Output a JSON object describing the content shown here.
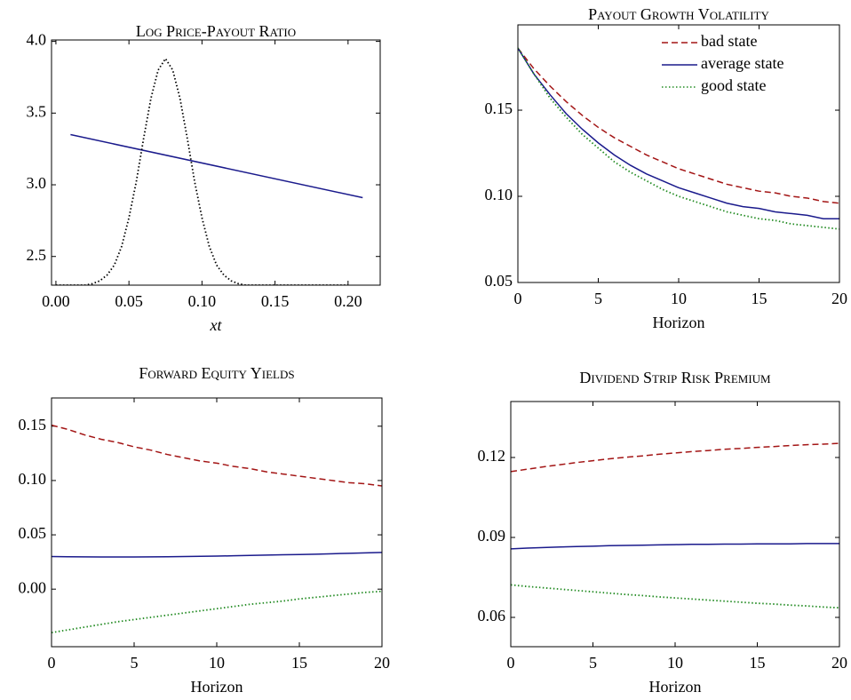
{
  "chart_data": [
    {
      "type": "line",
      "title": "Log Price-Payout Ratio",
      "xlabel": "xt",
      "xlim": [
        -0.003,
        0.222
      ],
      "xticks": [
        {
          "value": 0,
          "label": "0.00"
        },
        0.05,
        {
          "value": 0.1,
          "label": "0.10"
        },
        0.15,
        {
          "value": 0.2,
          "label": "0.20"
        }
      ],
      "ylim": [
        2.3,
        4.01
      ],
      "yticks": [
        2.5,
        {
          "value": 3,
          "label": "3.0"
        },
        3.5,
        {
          "value": 4,
          "label": "4.0"
        }
      ],
      "series": [
        {
          "color": "#1a1a8c",
          "dash": "solid",
          "x": [
            0.01,
            0.21
          ],
          "values": [
            3.35,
            2.91
          ]
        },
        {
          "color": "#000000",
          "dash": "dotted",
          "x": [
            0,
            0.005,
            0.01,
            0.015,
            0.02,
            0.025,
            0.03,
            0.035,
            0.04,
            0.045,
            0.05,
            0.055,
            0.06,
            0.065,
            0.07,
            0.075,
            0.08,
            0.085,
            0.09,
            0.095,
            0.1,
            0.105,
            0.11,
            0.115,
            0.12,
            0.125,
            0.13,
            0.14,
            0.15,
            0.16,
            0.17,
            0.18,
            0.19,
            0.2
          ],
          "values": [
            2.3,
            2.3,
            2.3,
            2.3,
            2.3,
            2.31,
            2.33,
            2.37,
            2.44,
            2.57,
            2.77,
            3.02,
            3.32,
            3.6,
            3.8,
            3.88,
            3.8,
            3.6,
            3.32,
            3.02,
            2.77,
            2.57,
            2.44,
            2.37,
            2.33,
            2.31,
            2.3,
            2.3,
            2.3,
            2.3,
            2.3,
            2.3,
            2.3,
            2.3
          ]
        }
      ]
    },
    {
      "type": "line",
      "title": "Payout Growth Volatility",
      "xlabel": "Horizon",
      "legend": "north east",
      "x": [
        0,
        1,
        2,
        3,
        4,
        5,
        6,
        7,
        8,
        9,
        10,
        11,
        12,
        13,
        14,
        15,
        16,
        17,
        18,
        19,
        20
      ],
      "xlim": [
        0,
        20
      ],
      "xticks": [
        0,
        5,
        10,
        15,
        20
      ],
      "ylim": [
        0.05,
        0.1995
      ],
      "yticks": [
        0.05,
        {
          "value": 0.1,
          "label": "0.10"
        },
        0.15
      ],
      "series": [
        {
          "name": "bad state",
          "color": "#a31515",
          "dash": "dashed",
          "values": [
            0.186,
            0.174,
            0.164,
            0.155,
            0.147,
            0.14,
            0.134,
            0.129,
            0.124,
            0.12,
            0.116,
            0.113,
            0.11,
            0.107,
            0.105,
            0.103,
            0.102,
            0.1,
            0.099,
            0.097,
            0.096
          ]
        },
        {
          "name": "average state",
          "color": "#1a1a8c",
          "dash": "solid",
          "values": [
            0.186,
            0.171,
            0.159,
            0.148,
            0.139,
            0.131,
            0.124,
            0.118,
            0.113,
            0.109,
            0.105,
            0.102,
            0.099,
            0.096,
            0.094,
            0.093,
            0.091,
            0.09,
            0.089,
            0.087,
            0.087
          ]
        },
        {
          "name": "good state",
          "color": "#228b22",
          "dash": "dotted",
          "values": [
            0.186,
            0.171,
            0.157,
            0.146,
            0.136,
            0.128,
            0.12,
            0.114,
            0.109,
            0.104,
            0.1,
            0.097,
            0.094,
            0.091,
            0.089,
            0.087,
            0.086,
            0.084,
            0.083,
            0.082,
            0.081
          ]
        }
      ]
    },
    {
      "type": "line",
      "title": "Forward Equity Yields",
      "xlabel": "Horizon",
      "x": [
        0,
        1,
        2,
        3,
        4,
        5,
        6,
        7,
        8,
        9,
        10,
        11,
        12,
        13,
        14,
        15,
        16,
        17,
        18,
        19,
        20
      ],
      "xlim": [
        0,
        20
      ],
      "xticks": [
        0,
        5,
        10,
        15,
        20
      ],
      "ylim": [
        -0.053,
        0.176
      ],
      "yticks": [
        {
          "value": 0,
          "label": "0.00"
        },
        0.05,
        {
          "value": 0.1,
          "label": "0.10"
        },
        0.15
      ],
      "series": [
        {
          "color": "#a31515",
          "dash": "dashed",
          "values": [
            0.151,
            0.147,
            0.142,
            0.138,
            0.135,
            0.131,
            0.128,
            0.124,
            0.121,
            0.118,
            0.116,
            0.113,
            0.111,
            0.108,
            0.106,
            0.104,
            0.102,
            0.1,
            0.098,
            0.097,
            0.095
          ]
        },
        {
          "color": "#1a1a8c",
          "dash": "solid",
          "values": [
            0.03,
            0.0298,
            0.0297,
            0.0296,
            0.0296,
            0.0296,
            0.0297,
            0.0298,
            0.03,
            0.0302,
            0.0304,
            0.0307,
            0.031,
            0.0313,
            0.0316,
            0.0319,
            0.0322,
            0.0326,
            0.033,
            0.0334,
            0.0338
          ]
        },
        {
          "color": "#228b22",
          "dash": "dotted",
          "values": [
            -0.04,
            -0.0375,
            -0.035,
            -0.0325,
            -0.03,
            -0.028,
            -0.026,
            -0.024,
            -0.022,
            -0.02,
            -0.018,
            -0.016,
            -0.014,
            -0.0125,
            -0.011,
            -0.009,
            -0.0075,
            -0.006,
            -0.0045,
            -0.003,
            -0.002
          ]
        }
      ]
    },
    {
      "type": "line",
      "title": "Dividend Strip Risk Premium",
      "xlabel": "Horizon",
      "x": [
        0,
        1,
        2,
        3,
        4,
        5,
        6,
        7,
        8,
        9,
        10,
        11,
        12,
        13,
        14,
        15,
        16,
        17,
        18,
        19,
        20
      ],
      "xlim": [
        0,
        20
      ],
      "xticks": [
        0,
        5,
        10,
        15,
        20
      ],
      "ylim": [
        0.049,
        0.141
      ],
      "yticks": [
        0.06,
        0.09,
        0.12
      ],
      "series": [
        {
          "color": "#a31515",
          "dash": "dashed",
          "values": [
            0.1147,
            0.1156,
            0.1165,
            0.1173,
            0.1181,
            0.1188,
            0.1195,
            0.1201,
            0.1206,
            0.1212,
            0.1217,
            0.1222,
            0.1226,
            0.1231,
            0.1234,
            0.1238,
            0.1241,
            0.1245,
            0.1248,
            0.125,
            0.1253
          ]
        },
        {
          "color": "#1a1a8c",
          "dash": "solid",
          "values": [
            0.0857,
            0.086,
            0.0862,
            0.0864,
            0.0866,
            0.0867,
            0.0869,
            0.087,
            0.0871,
            0.0872,
            0.0873,
            0.0874,
            0.0874,
            0.0875,
            0.0875,
            0.0876,
            0.0876,
            0.0876,
            0.0877,
            0.0877,
            0.0877
          ]
        },
        {
          "color": "#228b22",
          "dash": "dotted",
          "values": [
            0.0722,
            0.0716,
            0.0711,
            0.0706,
            0.0701,
            0.0696,
            0.0691,
            0.0686,
            0.0682,
            0.0677,
            0.0673,
            0.0669,
            0.0665,
            0.0661,
            0.0657,
            0.0653,
            0.065,
            0.0646,
            0.0643,
            0.0639,
            0.0636
          ]
        }
      ]
    }
  ]
}
